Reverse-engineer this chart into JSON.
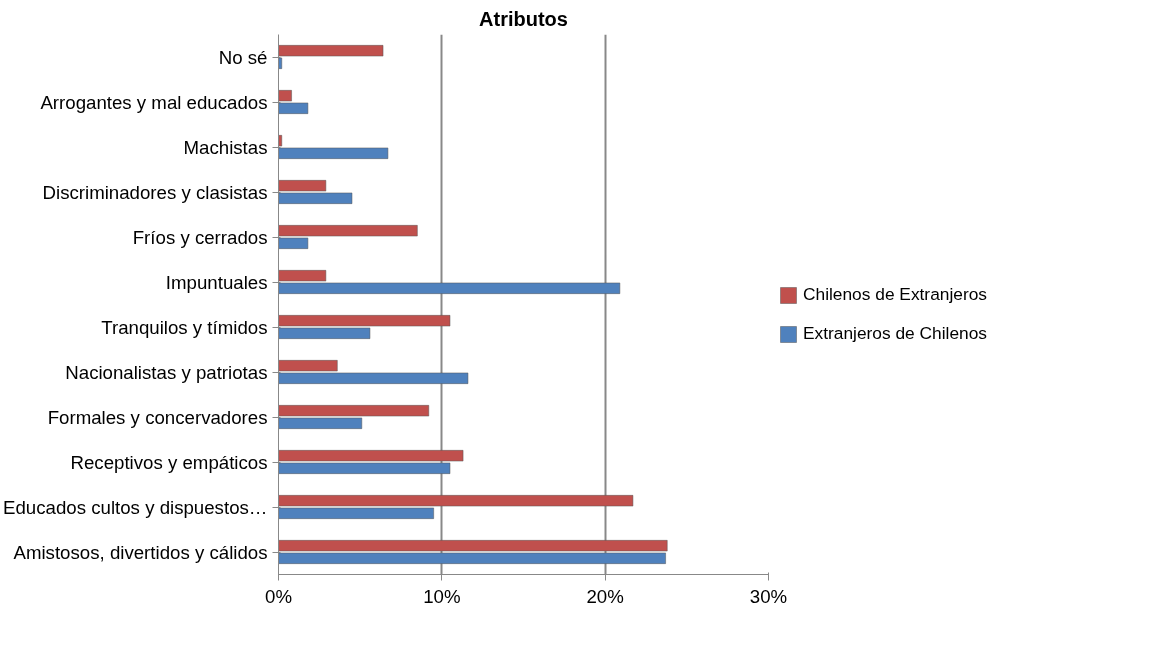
{
  "chart_data": {
    "type": "bar",
    "orientation": "horizontal",
    "title": "Atributos",
    "categories": [
      "No sé",
      "Arrogantes y mal educados",
      "Machistas",
      "Discriminadores y clasistas",
      "Fríos y cerrados",
      "Impuntuales",
      "Tranquilos y tímidos",
      "Nacionalistas y patriotas",
      "Formales y concervadores",
      "Receptivos y empáticos",
      "Educados cultos y dispuestos…",
      "Amistosos, divertidos y cálidos"
    ],
    "series": [
      {
        "name": "Chilenos de Extranjeros",
        "color": "#c0504d",
        "values": [
          6.4,
          0.8,
          0.2,
          2.9,
          8.5,
          2.9,
          10.5,
          3.6,
          9.2,
          11.3,
          21.7,
          23.8
        ]
      },
      {
        "name": "Extranjeros de Chilenos",
        "color": "#4f81bd",
        "values": [
          0.2,
          1.8,
          6.7,
          4.5,
          1.8,
          20.9,
          5.6,
          11.6,
          5.1,
          10.5,
          9.5,
          23.7
        ]
      }
    ],
    "xlim": [
      0,
      30
    ],
    "xticks": [
      {
        "value": 0,
        "label": "0%"
      },
      {
        "value": 10,
        "label": "10%"
      },
      {
        "value": 20,
        "label": "20%"
      },
      {
        "value": 30,
        "label": "30%"
      }
    ],
    "grid": "x",
    "legend": "right"
  }
}
